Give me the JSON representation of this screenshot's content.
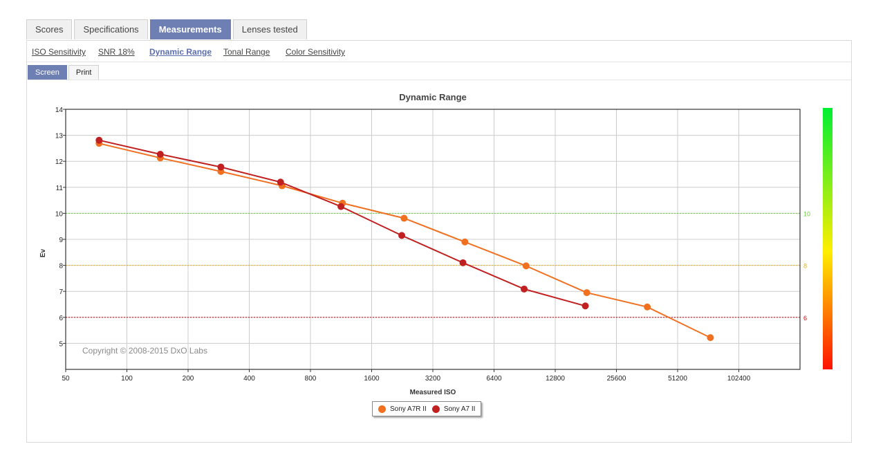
{
  "tabs": [
    {
      "label": "Scores",
      "active": false
    },
    {
      "label": "Specifications",
      "active": false
    },
    {
      "label": "Measurements",
      "active": true
    },
    {
      "label": "Lenses tested",
      "active": false
    }
  ],
  "subnav": [
    {
      "label": "ISO Sensitivity",
      "active": false
    },
    {
      "label": "SNR 18%",
      "active": false
    },
    {
      "label": "Dynamic Range",
      "active": true
    },
    {
      "label": "Tonal Range",
      "active": false
    },
    {
      "label": "Color Sensitivity",
      "active": false
    }
  ],
  "view_toggle": {
    "screen_label": "Screen",
    "print_label": "Print",
    "active": "Screen"
  },
  "chart_data": {
    "type": "line",
    "title": "Dynamic Range",
    "xlabel": "Measured ISO",
    "ylabel": "Ev",
    "x_scale": "log2",
    "xlim": [
      50,
      204800
    ],
    "ylim": [
      4,
      14
    ],
    "x_ticks": [
      "50",
      "100",
      "200",
      "400",
      "800",
      "1600",
      "3200",
      "6400",
      "12800",
      "25600",
      "51200",
      "102400"
    ],
    "y_ticks": [
      "5",
      "6",
      "7",
      "8",
      "9",
      "10",
      "11",
      "12",
      "13",
      "14"
    ],
    "grid": true,
    "reference_lines": [
      {
        "y": 10,
        "label": "10",
        "color": "#66cc33"
      },
      {
        "y": 8,
        "label": "8",
        "color": "#f0b000"
      },
      {
        "y": 6,
        "label": "6",
        "color": "#cc0000"
      }
    ],
    "copyright": "Copyright © 2008-2015 DxO Labs",
    "legend_position": "bottom-center",
    "series": [
      {
        "name": "Sony A7R II",
        "color": "#f07020",
        "points": [
          [
            73,
            12.69
          ],
          [
            146,
            12.13
          ],
          [
            290,
            11.61
          ],
          [
            580,
            11.06
          ],
          [
            1150,
            10.39
          ],
          [
            2310,
            9.81
          ],
          [
            4600,
            8.9
          ],
          [
            9200,
            7.98
          ],
          [
            18300,
            6.95
          ],
          [
            36300,
            6.4
          ],
          [
            74200,
            5.22
          ]
        ]
      },
      {
        "name": "Sony A7 II",
        "color": "#c02020",
        "points": [
          [
            73,
            12.81
          ],
          [
            146,
            12.27
          ],
          [
            290,
            11.78
          ],
          [
            570,
            11.2
          ],
          [
            1130,
            10.26
          ],
          [
            2250,
            9.15
          ],
          [
            4500,
            8.1
          ],
          [
            9000,
            7.09
          ],
          [
            18000,
            6.44
          ]
        ]
      }
    ],
    "colorbar": {
      "top_color": "#00ee33",
      "mid_color": "#ffee00",
      "bottom_color": "#ff1100"
    }
  }
}
